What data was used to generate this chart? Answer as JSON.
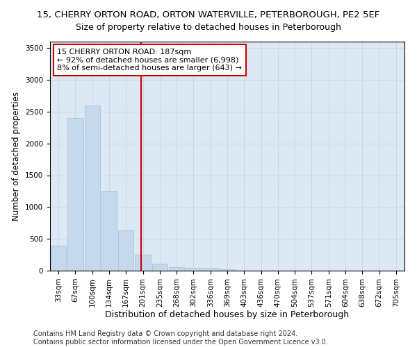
{
  "title": "15, CHERRY ORTON ROAD, ORTON WATERVILLE, PETERBOROUGH, PE2 5EF",
  "subtitle": "Size of property relative to detached houses in Peterborough",
  "xlabel": "Distribution of detached houses by size in Peterborough",
  "ylabel": "Number of detached properties",
  "footnote1": "Contains HM Land Registry data © Crown copyright and database right 2024.",
  "footnote2": "Contains public sector information licensed under the Open Government Licence v3.0.",
  "bin_labels": [
    "33sqm",
    "67sqm",
    "100sqm",
    "134sqm",
    "167sqm",
    "201sqm",
    "235sqm",
    "268sqm",
    "302sqm",
    "336sqm",
    "369sqm",
    "403sqm",
    "436sqm",
    "470sqm",
    "504sqm",
    "537sqm",
    "571sqm",
    "604sqm",
    "638sqm",
    "672sqm",
    "705sqm"
  ],
  "bar_heights": [
    390,
    2400,
    2600,
    1250,
    630,
    250,
    110,
    60,
    45,
    40,
    20,
    0,
    0,
    0,
    0,
    0,
    0,
    0,
    0,
    0,
    0
  ],
  "bar_color": "#c5d9ee",
  "bar_edge_color": "#a0bcd8",
  "grid_color": "#c8d8e8",
  "background_color": "#dce8f4",
  "vline_x_index": 4.9,
  "vline_color": "#cc0000",
  "annotation_text": "15 CHERRY ORTON ROAD: 187sqm\n← 92% of detached houses are smaller (6,998)\n8% of semi-detached houses are larger (643) →",
  "annotation_box_color": "#cc0000",
  "annotation_text_color": "#000000",
  "ylim": [
    0,
    3600
  ],
  "title_fontsize": 9.5,
  "subtitle_fontsize": 9,
  "xlabel_fontsize": 9,
  "ylabel_fontsize": 8.5,
  "tick_fontsize": 7.5,
  "footnote_fontsize": 7,
  "annotation_fontsize": 8
}
